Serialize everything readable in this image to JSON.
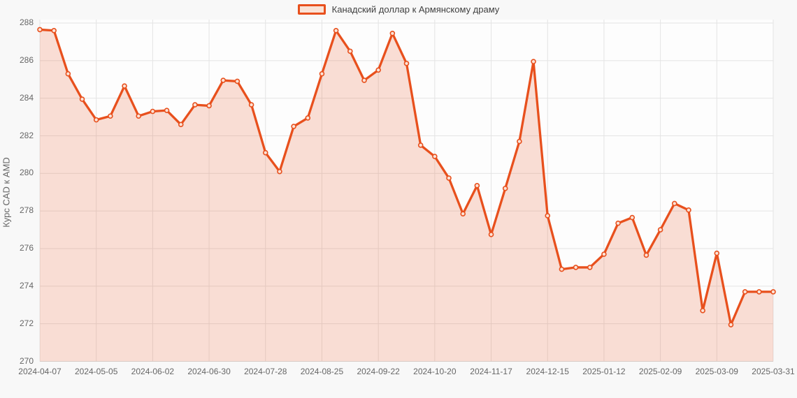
{
  "legend": {
    "label": "Канадский доллар к Армянскому драму"
  },
  "colors": {
    "line": "#e8501d",
    "area_fill": "rgba(232,80,29,0.18)",
    "marker_fill": "#fbe3d7",
    "gridline": "#e4e4e4",
    "plot_background": "#fdfdfd",
    "page_background": "#f8f8f8",
    "tick_text": "#666666",
    "legend_text": "#404040"
  },
  "chart_data": {
    "type": "area",
    "title": "",
    "xlabel": "",
    "ylabel": "Курс CAD к AMD",
    "ylim": [
      270,
      288
    ],
    "y_ticks": [
      270,
      272,
      274,
      276,
      278,
      280,
      282,
      284,
      286,
      288
    ],
    "grid": true,
    "legend_position": "top-center",
    "x": [
      "2024-04-07",
      "2024-04-14",
      "2024-04-21",
      "2024-04-28",
      "2024-05-05",
      "2024-05-12",
      "2024-05-19",
      "2024-05-26",
      "2024-06-02",
      "2024-06-09",
      "2024-06-16",
      "2024-06-23",
      "2024-06-30",
      "2024-07-07",
      "2024-07-14",
      "2024-07-21",
      "2024-07-28",
      "2024-08-04",
      "2024-08-11",
      "2024-08-18",
      "2024-08-25",
      "2024-09-01",
      "2024-09-08",
      "2024-09-15",
      "2024-09-22",
      "2024-09-29",
      "2024-10-06",
      "2024-10-13",
      "2024-10-20",
      "2024-10-27",
      "2024-11-03",
      "2024-11-10",
      "2024-11-17",
      "2024-11-24",
      "2024-12-01",
      "2024-12-08",
      "2024-12-15",
      "2024-12-22",
      "2024-12-29",
      "2025-01-05",
      "2025-01-12",
      "2025-01-19",
      "2025-01-26",
      "2025-02-02",
      "2025-02-09",
      "2025-02-16",
      "2025-02-23",
      "2025-03-02",
      "2025-03-09",
      "2025-03-16",
      "2025-03-23",
      "2025-03-30",
      "2025-03-31"
    ],
    "x_tick_labels": [
      "2024-04-07",
      "2024-05-05",
      "2024-06-02",
      "2024-06-30",
      "2024-07-28",
      "2024-08-25",
      "2024-09-22",
      "2024-10-20",
      "2024-11-17",
      "2024-12-15",
      "2025-01-12",
      "2025-02-09",
      "2025-03-09",
      "2025-03-31"
    ],
    "x_tick_indices": [
      0,
      4,
      8,
      12,
      16,
      20,
      24,
      28,
      32,
      36,
      40,
      44,
      48,
      52
    ],
    "series": [
      {
        "name": "Канадский доллар к Армянскому драму",
        "values": [
          287.65,
          287.6,
          285.3,
          283.95,
          282.85,
          283.05,
          284.65,
          283.05,
          283.3,
          283.35,
          282.6,
          283.65,
          283.6,
          284.95,
          284.9,
          283.65,
          281.1,
          280.1,
          282.5,
          282.95,
          285.3,
          287.6,
          286.5,
          284.95,
          285.5,
          287.45,
          285.85,
          281.5,
          280.9,
          279.75,
          277.85,
          279.35,
          276.75,
          279.2,
          281.7,
          285.95,
          277.75,
          274.9,
          275.0,
          275.0,
          275.7,
          277.35,
          277.65,
          275.65,
          277.0,
          278.4,
          278.05,
          272.7,
          275.75,
          271.95,
          273.7,
          273.7,
          273.7
        ]
      }
    ]
  }
}
